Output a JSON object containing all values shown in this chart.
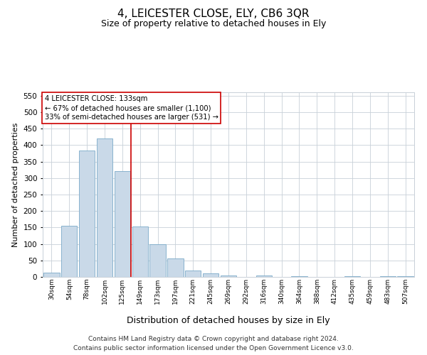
{
  "title": "4, LEICESTER CLOSE, ELY, CB6 3QR",
  "subtitle": "Size of property relative to detached houses in Ely",
  "xlabel": "Distribution of detached houses by size in Ely",
  "ylabel": "Number of detached properties",
  "categories": [
    "30sqm",
    "54sqm",
    "78sqm",
    "102sqm",
    "125sqm",
    "149sqm",
    "173sqm",
    "197sqm",
    "221sqm",
    "245sqm",
    "269sqm",
    "292sqm",
    "316sqm",
    "340sqm",
    "364sqm",
    "388sqm",
    "412sqm",
    "435sqm",
    "459sqm",
    "483sqm",
    "507sqm"
  ],
  "values": [
    13,
    155,
    383,
    420,
    322,
    153,
    100,
    55,
    20,
    10,
    5,
    0,
    4,
    0,
    3,
    0,
    0,
    2,
    0,
    3,
    2
  ],
  "bar_color": "#c9d9e8",
  "bar_edge_color": "#7aaac8",
  "vline_x": 4.5,
  "vline_color": "#cc0000",
  "annotation_text": "4 LEICESTER CLOSE: 133sqm\n← 67% of detached houses are smaller (1,100)\n33% of semi-detached houses are larger (531) →",
  "annotation_box_color": "#ffffff",
  "annotation_box_edge": "#cc0000",
  "ylim": [
    0,
    560
  ],
  "yticks": [
    0,
    50,
    100,
    150,
    200,
    250,
    300,
    350,
    400,
    450,
    500,
    550
  ],
  "footer_line1": "Contains HM Land Registry data © Crown copyright and database right 2024.",
  "footer_line2": "Contains public sector information licensed under the Open Government Licence v3.0.",
  "bg_color": "#ffffff",
  "grid_color": "#c8d0d8",
  "title_fontsize": 11,
  "subtitle_fontsize": 9,
  "xlabel_fontsize": 9,
  "ylabel_fontsize": 8,
  "footer_fontsize": 6.5
}
